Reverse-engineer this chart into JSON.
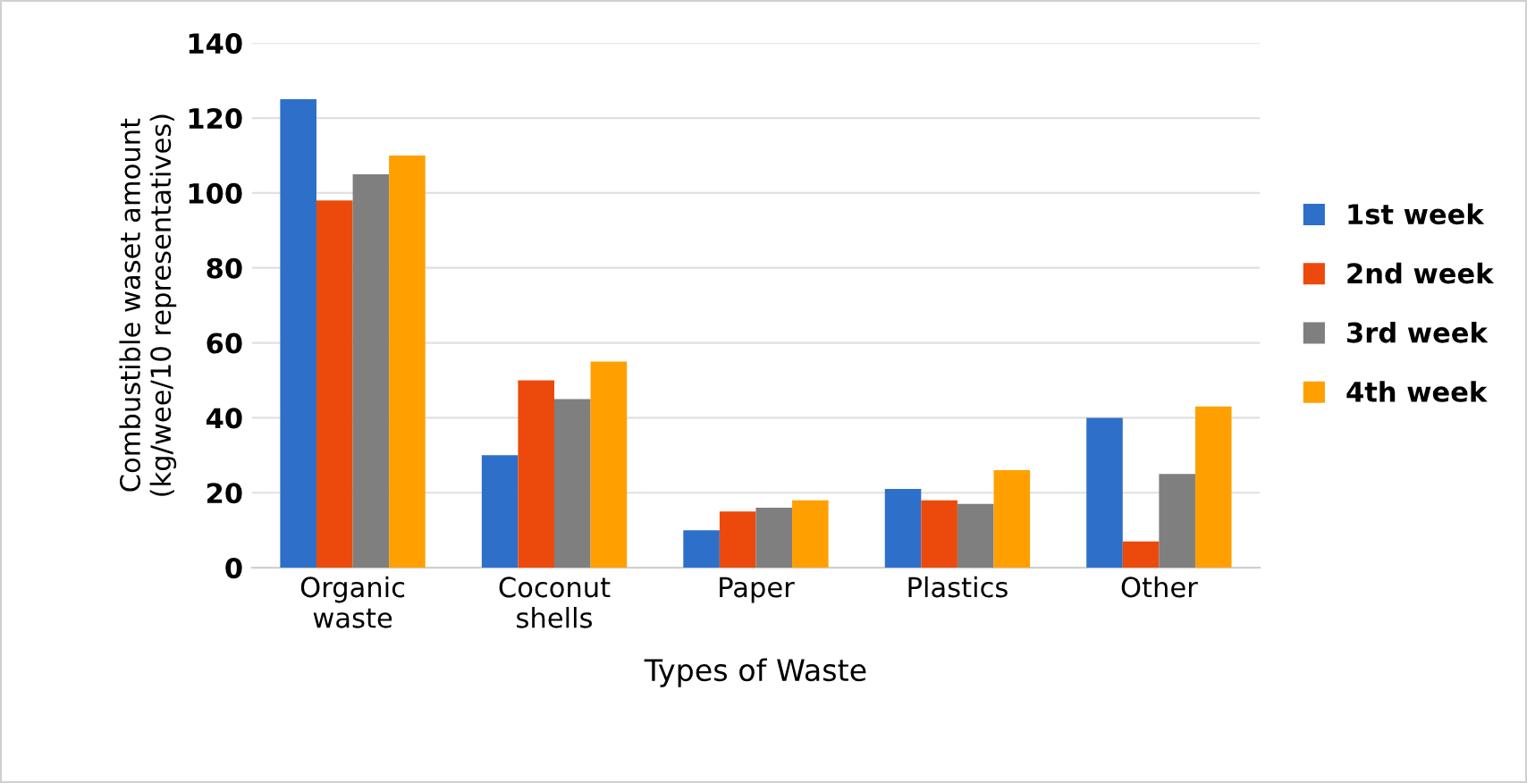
{
  "chart_data": {
    "type": "bar",
    "xlabel": "Types of Waste",
    "ylabel": "Combustible waset amount\n(kg/wee/10 representatives)",
    "categories": [
      "Organic\nwaste",
      "Coconut\nshells",
      "Paper",
      "Plastics",
      "Other"
    ],
    "series": [
      {
        "name": "1st week",
        "color": "#2e6fc9",
        "values": [
          125,
          30,
          10,
          21,
          40
        ]
      },
      {
        "name": "2nd week",
        "color": "#ec4a0c",
        "values": [
          98,
          50,
          15,
          18,
          7
        ]
      },
      {
        "name": "3rd week",
        "color": "#7f7f7f",
        "values": [
          105,
          45,
          16,
          17,
          25
        ]
      },
      {
        "name": "4th week",
        "color": "#ffa000",
        "values": [
          110,
          55,
          18,
          26,
          43
        ]
      }
    ],
    "ylim": [
      0,
      140
    ],
    "yticks": [
      0,
      20,
      40,
      60,
      80,
      100,
      120,
      140
    ],
    "grid": "y",
    "legend": "right"
  }
}
